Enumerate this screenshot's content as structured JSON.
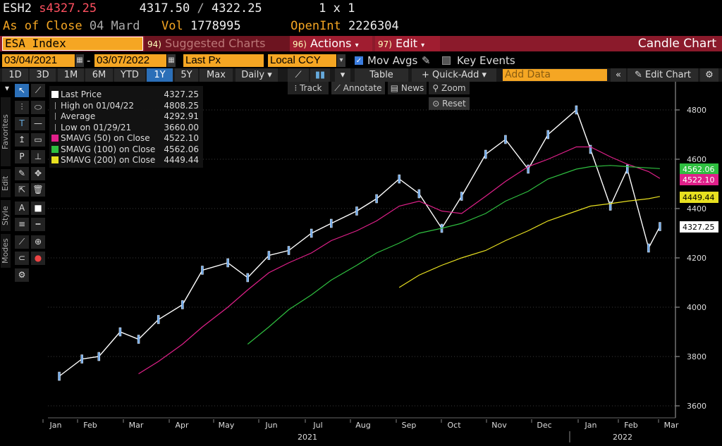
{
  "header": {
    "ticker": "ESH2",
    "last_prefix": "s",
    "last": "4327.25",
    "bid": "4317.50",
    "sep": "/",
    "ask": "4322.25",
    "size": "1 x 1",
    "as_of_label": "As of Close",
    "as_of_date": "04 Mard",
    "vol_label": "Vol",
    "vol": "1778995",
    "openint_label": "OpenInt",
    "openint": "2226304"
  },
  "toolbar": {
    "security": "ESA Index",
    "suggested_num": "94)",
    "suggested": "Suggested Charts",
    "actions_num": "96)",
    "actions": "Actions",
    "edit_num": "97)",
    "edit": "Edit",
    "candle_chart": "Candle Chart"
  },
  "params": {
    "start_date": "03/04/2021",
    "dash": "-",
    "end_date": "03/07/2022",
    "field": "Last Px",
    "currency": "Local CCY",
    "mov_avgs": "Mov Avgs",
    "key_events": "Key Events"
  },
  "ranges": {
    "items": [
      "1D",
      "3D",
      "1M",
      "6M",
      "YTD",
      "1Y",
      "5Y",
      "Max"
    ],
    "active": "1Y",
    "period": "Daily",
    "table": "Table",
    "quick_add": "+ Quick-Add",
    "add_data_placeholder": "Add Data",
    "edit_chart": "Edit Chart"
  },
  "overlay": {
    "track": "Track",
    "annotate": "Annotate",
    "news": "News",
    "zoom": "Zoom",
    "reset": "Reset"
  },
  "side_tabs": [
    "Favorites",
    "Edit",
    "Style",
    "Modes"
  ],
  "legend": [
    {
      "label": "Last Price",
      "value": "4327.25",
      "color": "#ffffff"
    },
    {
      "label": "High on 01/04/22",
      "value": "4808.25",
      "color": ""
    },
    {
      "label": "Average",
      "value": "4292.91",
      "color": ""
    },
    {
      "label": "Low on 01/29/21",
      "value": "3660.00",
      "color": ""
    },
    {
      "label": "SMAVG (50)  on Close",
      "value": "4522.10",
      "color": "#e0208a"
    },
    {
      "label": "SMAVG (100)  on Close",
      "value": "4562.06",
      "color": "#2fbf40"
    },
    {
      "label": "SMAVG (200)  on Close",
      "value": "4449.44",
      "color": "#e8e020"
    }
  ],
  "chart_data": {
    "type": "line",
    "title": "",
    "xlabel": "",
    "ylabel": "",
    "ylim": [
      3600,
      4850
    ],
    "yticks": [
      3600,
      3800,
      4000,
      4200,
      4400,
      4600,
      4800
    ],
    "x_month_labels": [
      "Jan",
      "Feb",
      "Mar",
      "Apr",
      "May",
      "Jun",
      "Jul",
      "Aug",
      "Sep",
      "Oct",
      "Nov",
      "Dec",
      "Jan",
      "Feb",
      "Mar"
    ],
    "year_labels": [
      "2021",
      "2022"
    ],
    "x": [
      "2021-01-04",
      "2021-01-20",
      "2021-02-01",
      "2021-02-16",
      "2021-03-01",
      "2021-03-15",
      "2021-04-01",
      "2021-04-15",
      "2021-05-03",
      "2021-05-17",
      "2021-06-01",
      "2021-06-15",
      "2021-07-01",
      "2021-07-15",
      "2021-08-02",
      "2021-08-16",
      "2021-09-01",
      "2021-09-15",
      "2021-10-01",
      "2021-10-15",
      "2021-11-01",
      "2021-11-15",
      "2021-12-01",
      "2021-12-15",
      "2022-01-04",
      "2022-01-14",
      "2022-01-28",
      "2022-02-09",
      "2022-02-24",
      "2022-03-04"
    ],
    "series": [
      {
        "name": "Last Price",
        "color": "#ffffff",
        "values": [
          3720,
          3790,
          3800,
          3900,
          3870,
          3950,
          4010,
          4150,
          4180,
          4120,
          4210,
          4230,
          4300,
          4340,
          4390,
          4440,
          4520,
          4460,
          4320,
          4450,
          4620,
          4680,
          4560,
          4700,
          4800,
          4640,
          4410,
          4560,
          4240,
          4327
        ]
      },
      {
        "name": "SMAVG (50)  on Close",
        "color": "#e0208a",
        "values": [
          null,
          null,
          null,
          null,
          3730,
          3780,
          3850,
          3920,
          4000,
          4070,
          4140,
          4180,
          4220,
          4270,
          4310,
          4350,
          4410,
          4430,
          4390,
          4380,
          4450,
          4510,
          4570,
          4600,
          4650,
          4650,
          4610,
          4580,
          4550,
          4522
        ]
      },
      {
        "name": "SMAVG (100)  on Close",
        "color": "#2fbf40",
        "values": [
          null,
          null,
          null,
          null,
          null,
          null,
          null,
          null,
          null,
          3850,
          3920,
          3990,
          4050,
          4110,
          4170,
          4220,
          4260,
          4300,
          4320,
          4340,
          4380,
          4430,
          4470,
          4520,
          4560,
          4570,
          4575,
          4570,
          4565,
          4562
        ]
      },
      {
        "name": "SMAVG (200)  on Close",
        "color": "#e8e020",
        "values": [
          null,
          null,
          null,
          null,
          null,
          null,
          null,
          null,
          null,
          null,
          null,
          null,
          null,
          null,
          null,
          null,
          4080,
          4130,
          4170,
          4200,
          4230,
          4270,
          4310,
          4350,
          4390,
          4410,
          4420,
          4430,
          4440,
          4449
        ]
      }
    ],
    "price_tags": [
      {
        "value": 4562.06,
        "label": "4562.06",
        "color": "#2fbf40"
      },
      {
        "value": 4522.1,
        "label": "4522.10",
        "color": "#e0208a"
      },
      {
        "value": 4449.44,
        "label": "4449.44",
        "color": "#e8e020"
      },
      {
        "value": 4327.25,
        "label": "4327.25",
        "color": "#ffffff"
      }
    ],
    "legend_position": "top-left"
  }
}
